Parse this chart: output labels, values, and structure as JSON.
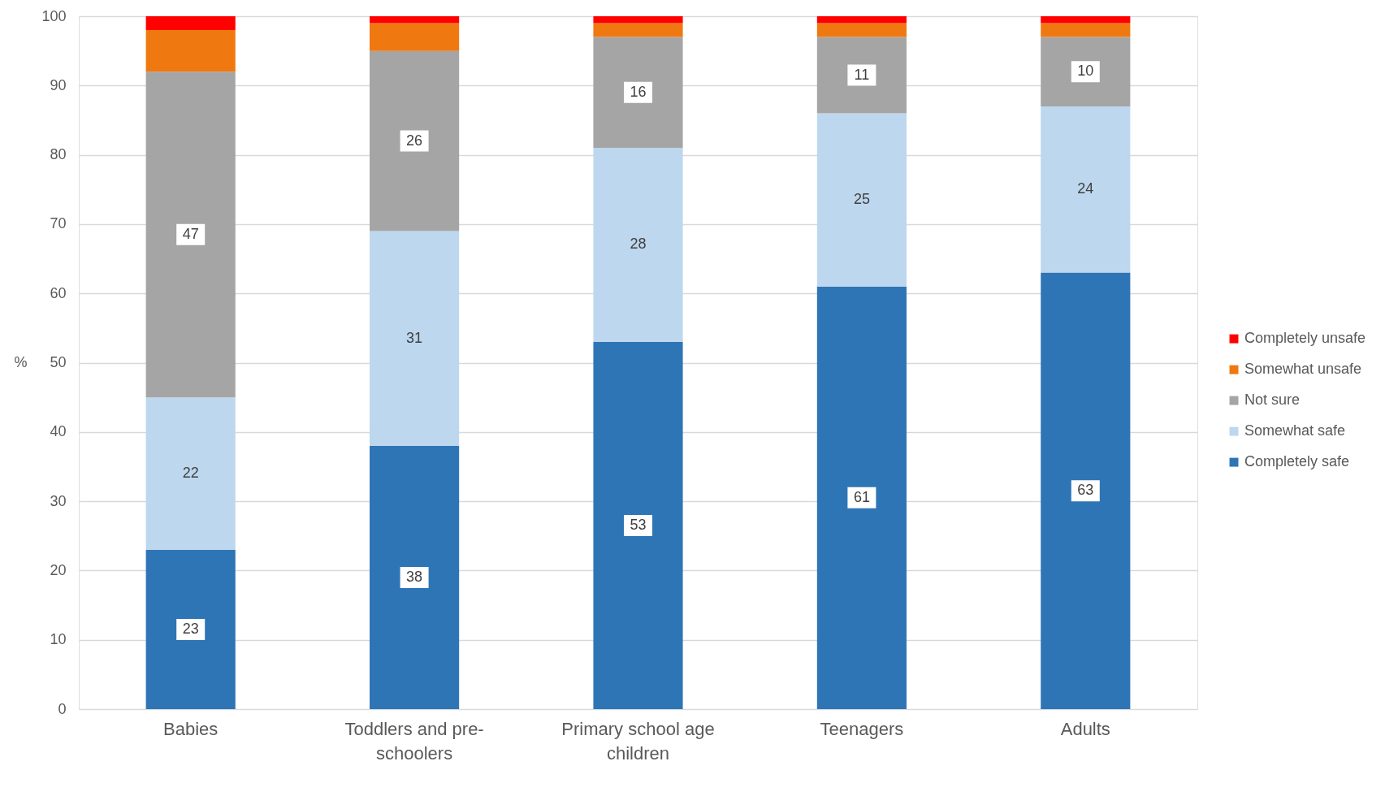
{
  "chart_data": {
    "type": "bar",
    "stacked": true,
    "ylabel": "%",
    "categories": [
      "Babies",
      "Toddlers and pre-schoolers",
      "Primary school age children",
      "Teenagers",
      "Adults"
    ],
    "ylim": [
      0,
      100
    ],
    "yticks": [
      0,
      10,
      20,
      30,
      40,
      50,
      60,
      70,
      80,
      90,
      100
    ],
    "grid": "y",
    "legend": "right",
    "series": [
      {
        "name": "Completely safe",
        "color": "#2e75b6",
        "values": [
          23,
          38,
          53,
          61,
          63
        ],
        "value_labels": [
          "23",
          "38",
          "53",
          "61",
          "63"
        ]
      },
      {
        "name": "Somewhat safe",
        "color": "#bdd7ee",
        "values": [
          22,
          31,
          28,
          25,
          24
        ],
        "value_labels": [
          "22",
          "31",
          "28",
          "25",
          "24"
        ]
      },
      {
        "name": "Not sure",
        "color": "#a5a5a5",
        "values": [
          47,
          26,
          16,
          11,
          10
        ],
        "value_labels": [
          "47",
          "26",
          "16",
          "11",
          "10"
        ]
      },
      {
        "name": "Somewhat unsafe",
        "color": "#f07810",
        "values": [
          6,
          4,
          2,
          2,
          2
        ]
      },
      {
        "name": "Completely unsafe",
        "color": "#ff0000",
        "values": [
          2,
          1,
          1,
          1,
          1
        ]
      }
    ]
  }
}
